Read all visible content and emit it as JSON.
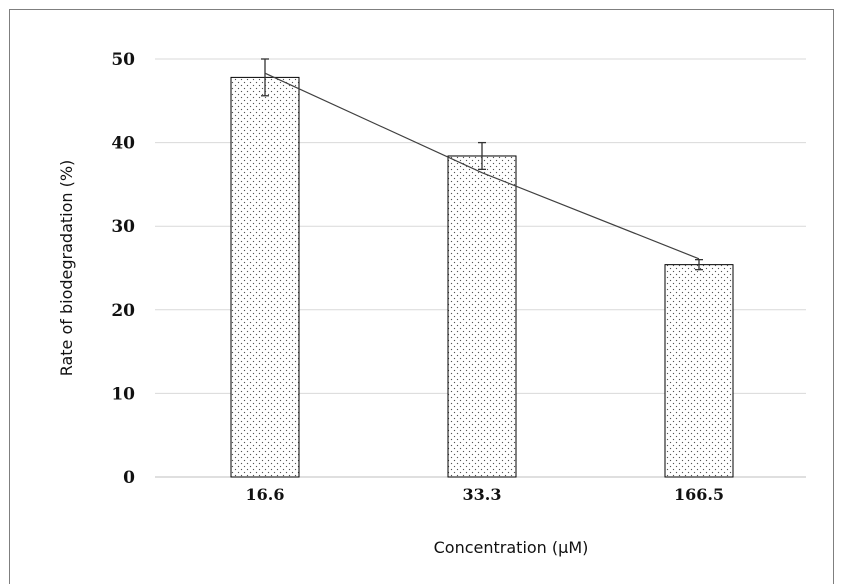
{
  "chart_data": {
    "type": "bar",
    "title": "",
    "xlabel": "Concentration (µM)",
    "ylabel": "Rate of biodegradation (%)",
    "categories": [
      "16.6",
      "33.3",
      "166.5"
    ],
    "values": [
      47.8,
      38.4,
      25.4
    ],
    "error": [
      2.2,
      1.6,
      0.6
    ],
    "trendline": [
      48.3,
      36.4,
      26.1
    ],
    "ylim": [
      0,
      50
    ],
    "yticks": [
      0,
      10,
      20,
      30,
      40,
      50
    ],
    "grid": true,
    "legend": "none",
    "bar_fill": "dotted",
    "colors": {
      "bar_border": "#000000",
      "dots": "#555555",
      "gridline": "#d9d9d9",
      "trendline": "#404040",
      "frame": "#7f7f7f"
    }
  }
}
